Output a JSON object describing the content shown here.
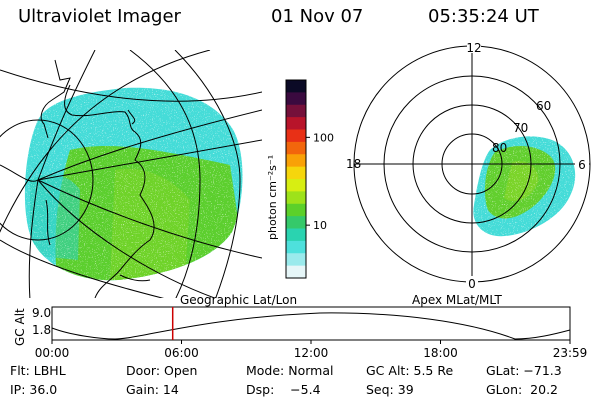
{
  "header": {
    "title": "Ultraviolet Imager",
    "date": "01 Nov 07",
    "time": "05:35:24 UT"
  },
  "colorbar": {
    "unit_label": "photon cm⁻²s⁻¹",
    "ticks": [
      {
        "label": "100",
        "value": 100
      },
      {
        "label": "10",
        "value": 10
      }
    ],
    "colors": [
      "#0b0a26",
      "#3a0a3f",
      "#75103a",
      "#b8142a",
      "#e83016",
      "#f2660c",
      "#f9a107",
      "#f6d60c",
      "#d7ee12",
      "#9ee21a",
      "#5cd02a",
      "#35c96a",
      "#2ad3b0",
      "#4ee0dc",
      "#9aeaec",
      "#e6f6f8"
    ]
  },
  "left_panel": {
    "caption": "Geographic Lat/Lon"
  },
  "right_panel": {
    "caption": "Apex MLat/MLT",
    "mlt_labels": {
      "top": "12",
      "right": "6",
      "bottom": "0",
      "left": "18"
    },
    "lat_labels": [
      "60",
      "70",
      "80"
    ]
  },
  "altitude_plot": {
    "ylabel": "GC Alt",
    "y_ticks": [
      "9.0",
      "1.8"
    ],
    "x_ticks": [
      "00:00",
      "06:00",
      "12:00",
      "18:00",
      "23:59"
    ],
    "marker_time": "05:35:24",
    "marker_color": "#cc0000"
  },
  "status": {
    "row1": [
      {
        "key": "flt",
        "text": "Flt: LBHL"
      },
      {
        "key": "door",
        "text": "Door: Open"
      },
      {
        "key": "mode",
        "text": "Mode: Normal"
      },
      {
        "key": "gcalt",
        "text": "GC Alt: 5.5 Re"
      },
      {
        "key": "glat",
        "text": "GLat: −71.3"
      }
    ],
    "row2": [
      {
        "key": "ip",
        "text": "IP: 36.0"
      },
      {
        "key": "gain",
        "text": "Gain: 14"
      },
      {
        "key": "dsp",
        "text": "Dsp:    −5.4"
      },
      {
        "key": "seq",
        "text": "Seq: 39"
      },
      {
        "key": "glon",
        "text": "GLon:  20.2"
      }
    ]
  }
}
